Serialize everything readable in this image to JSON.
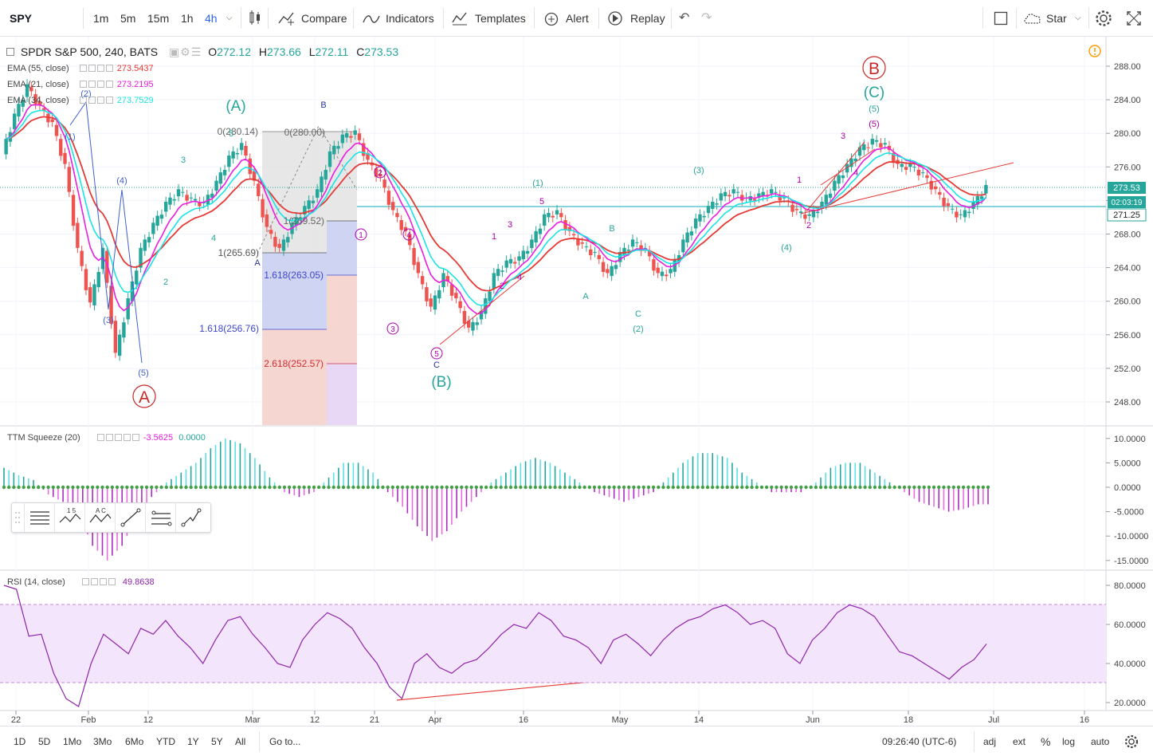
{
  "toolbar": {
    "symbol": "SPY",
    "intervals": [
      "1m",
      "5m",
      "15m",
      "1h",
      "4h"
    ],
    "selected_interval": "4h",
    "compare": "Compare",
    "indicators": "Indicators",
    "templates": "Templates",
    "alert": "Alert",
    "replay": "Replay",
    "star": "Star"
  },
  "legend": {
    "title": "SPDR S&P 500, 240, BATS",
    "o_label": "O",
    "o": "272.12",
    "h_label": "H",
    "h": "273.66",
    "l_label": "L",
    "l": "272.11",
    "c_label": "C",
    "c": "273.53",
    "ema": [
      {
        "label": "EMA (55, close)",
        "value": "273.5437",
        "color": "#e53935"
      },
      {
        "label": "EMA (21, close)",
        "value": "273.2195",
        "color": "#e91ee0"
      },
      {
        "label": "EMA (34, close)",
        "value": "273.7529",
        "color": "#1be4e4"
      }
    ],
    "ttm_label": "TTM Squeeze (20)",
    "ttm_value1": "-3.5625",
    "ttm_value2": "0.0000",
    "rsi_label": "RSI (14, close)",
    "rsi_value": "49.8638"
  },
  "price_axis": {
    "ticks": [
      "288.00",
      "284.00",
      "280.00",
      "276.00",
      "272.00",
      "268.00",
      "264.00",
      "260.00",
      "256.00",
      "252.00",
      "248.00"
    ],
    "last_price": "273.53",
    "countdown": "02:03:19",
    "hline_price": "271.25"
  },
  "ttm_axis": {
    "ticks": [
      "10.0000",
      "5.0000",
      "0.0000",
      "-5.0000",
      "-10.0000",
      "-15.0000"
    ]
  },
  "rsi_axis": {
    "ticks": [
      "80.0000",
      "60.0000",
      "40.0000",
      "20.0000"
    ]
  },
  "time_axis": [
    "22",
    "Feb",
    "12",
    "Mar",
    "12",
    "21",
    "Apr",
    "16",
    "May",
    "14",
    "Jun",
    "18",
    "Jul",
    "16"
  ],
  "wave_labels": {
    "A_circle": "A",
    "B_circle": "B",
    "big_A": "(A)",
    "big_B": "(B)",
    "big_C": "(C)",
    "big_C5": "(5)",
    "fib": [
      "0(280.14)",
      "0(280.00)",
      "1(269.52)",
      "1(265.69)",
      "1.618(263.05)",
      "1.618(256.76)",
      "2.618(252.57)"
    ],
    "small": [
      "(1)",
      "(2)",
      "(3)",
      "(4)",
      "(5)",
      "1",
      "2",
      "3",
      "4",
      "5",
      "A",
      "B",
      "C",
      "(1)",
      "(2)",
      "(3)",
      "(4)",
      "(5)"
    ]
  },
  "bottom": {
    "ranges": [
      "1D",
      "5D",
      "1Mo",
      "3Mo",
      "6Mo",
      "YTD",
      "1Y",
      "5Y",
      "All"
    ],
    "goto": "Go to...",
    "time": "09:26:40 (UTC-6)",
    "adj": "adj",
    "ext": "ext",
    "pct": "%",
    "log": "log",
    "auto": "auto"
  },
  "chart_data": {
    "type": "candlestick",
    "symbol": "SPY",
    "interval": "240",
    "price_ylim": [
      246,
      290
    ],
    "price_series": [
      [
        "22",
        277.5
      ],
      [
        "",
        282
      ],
      [
        "",
        285.5
      ],
      [
        "",
        283
      ],
      [
        "Feb",
        281
      ],
      [
        "",
        276
      ],
      [
        "",
        266
      ],
      [
        "",
        259.5
      ],
      [
        "",
        266
      ],
      [
        "12",
        253.5
      ],
      [
        "",
        260
      ],
      [
        "",
        266
      ],
      [
        "",
        269
      ],
      [
        "",
        271.5
      ],
      [
        "",
        273
      ],
      [
        "",
        272
      ],
      [
        "",
        271.5
      ],
      [
        "",
        274
      ],
      [
        "",
        277
      ],
      [
        "",
        278.5
      ],
      [
        "Mar",
        274
      ],
      [
        "",
        268.5
      ],
      [
        "",
        266
      ],
      [
        "",
        269
      ],
      [
        "",
        271
      ],
      [
        "",
        273
      ],
      [
        "12",
        277.5
      ],
      [
        "",
        279.5
      ],
      [
        "",
        280
      ],
      [
        "",
        276.5
      ],
      [
        "",
        274.5
      ],
      [
        "21",
        270.5
      ],
      [
        "",
        268
      ],
      [
        "",
        263
      ],
      [
        "",
        259
      ],
      [
        "",
        263
      ],
      [
        "",
        260
      ],
      [
        "Apr",
        256.5
      ],
      [
        "",
        258.5
      ],
      [
        "",
        263
      ],
      [
        "",
        264.5
      ],
      [
        "",
        265
      ],
      [
        "",
        267
      ],
      [
        "16",
        270
      ],
      [
        "",
        270.5
      ],
      [
        "",
        268
      ],
      [
        "",
        266.5
      ],
      [
        "",
        265.5
      ],
      [
        "",
        263
      ],
      [
        "",
        265.5
      ],
      [
        "",
        267
      ],
      [
        "",
        266
      ],
      [
        "",
        263
      ],
      [
        "May",
        263.5
      ],
      [
        "",
        267
      ],
      [
        "",
        269.5
      ],
      [
        "",
        271
      ],
      [
        "14",
        272.5
      ],
      [
        "",
        273
      ],
      [
        "",
        272
      ],
      [
        "",
        272.5
      ],
      [
        "",
        273
      ],
      [
        "",
        272
      ],
      [
        "",
        270.5
      ],
      [
        "",
        270
      ],
      [
        "Jun",
        271.5
      ],
      [
        "",
        274
      ],
      [
        "",
        276
      ],
      [
        "",
        278
      ],
      [
        "",
        279
      ],
      [
        "",
        278.5
      ],
      [
        "18",
        276
      ],
      [
        "",
        276
      ],
      [
        "",
        275
      ],
      [
        "",
        273
      ],
      [
        "",
        271
      ],
      [
        "",
        270
      ],
      [
        "",
        271.5
      ],
      [
        "",
        273.5
      ]
    ],
    "ema_55_last": 273.5437,
    "ema_21_last": 273.2195,
    "ema_34_last": 273.7529,
    "ttm_ylim": [
      -16,
      12
    ],
    "ttm_histogram": [
      4,
      2.5,
      1.5,
      -1.5,
      -3,
      -5,
      -12,
      -15,
      -12,
      -6,
      -2,
      1,
      3,
      5,
      8,
      10,
      9,
      6,
      2,
      -1,
      -2,
      -1,
      2,
      5,
      5,
      3,
      -1,
      -4,
      -8,
      -11,
      -9,
      -5,
      -2,
      1,
      3,
      5,
      6,
      5,
      3,
      1,
      -1,
      -2,
      -3,
      -2,
      -1,
      2,
      5,
      7,
      7,
      6,
      3,
      1,
      -1,
      -1,
      -1,
      1,
      4,
      5,
      5,
      3,
      1,
      -1,
      -3,
      -4,
      -5,
      -4.5,
      -3.5
    ],
    "rsi_ylim": [
      15,
      85
    ],
    "rsi_band": [
      30,
      70
    ],
    "rsi_series": [
      80,
      78,
      54,
      55,
      35,
      22,
      18,
      40,
      55,
      50,
      45,
      58,
      55,
      62,
      54,
      48,
      40,
      52,
      62,
      64,
      55,
      48,
      40,
      38,
      52,
      60,
      66,
      63,
      58,
      48,
      40,
      28,
      22,
      40,
      45,
      38,
      35,
      40,
      42,
      48,
      55,
      60,
      58,
      66,
      62,
      54,
      52,
      48,
      40,
      52,
      55,
      50,
      44,
      52,
      58,
      62,
      64,
      68,
      70,
      66,
      60,
      62,
      58,
      45,
      40,
      52,
      58,
      66,
      70,
      68,
      64,
      55,
      46,
      44,
      40,
      36,
      32,
      38,
      42,
      50
    ],
    "rsi_last": 49.8638
  }
}
